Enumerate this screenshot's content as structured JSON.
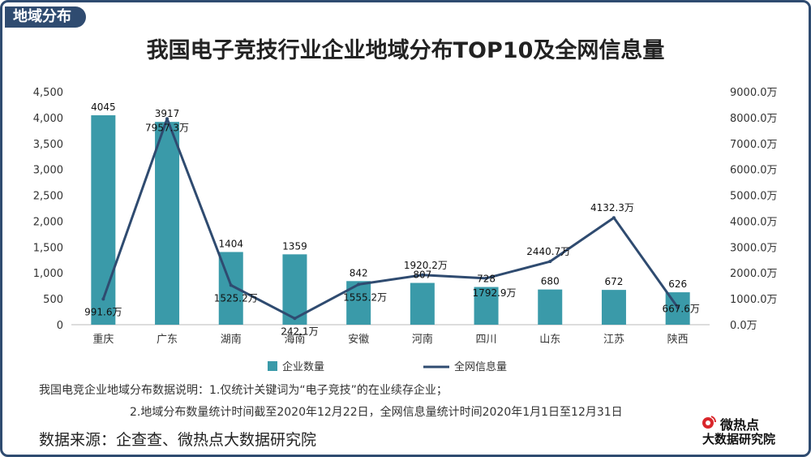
{
  "header": {
    "tag": "地域分布",
    "title": "我国电子竞技行业企业地域分布TOP10及全网信息量"
  },
  "notes": {
    "line1": "我国电竞企业地域分布数据说明：1.仅统计关键词为“电子竞技”的在业续存企业；",
    "line2": "2.地域分布数量统计时间截至2020年12月22日，全网信息量统计时间2020年1月1日至12月31日"
  },
  "source": "数据来源：企查查、微热点大数据研究院",
  "logo": {
    "top": "微热点",
    "bottom": "大数据研究院"
  },
  "colors": {
    "bar": "#3a9aa9",
    "line": "#2f4b70",
    "frame": "#2f4b70"
  },
  "chart_data": {
    "type": "bar",
    "categories": [
      "重庆",
      "广东",
      "湖南",
      "海南",
      "安徽",
      "河南",
      "四川",
      "山东",
      "江苏",
      "陕西"
    ],
    "series": [
      {
        "name": "企业数量",
        "type": "bar",
        "axis": "left",
        "values": [
          4045,
          3917,
          1404,
          1359,
          842,
          807,
          728,
          680,
          672,
          626
        ],
        "labels": [
          "4045",
          "3917",
          "1404",
          "1359",
          "842",
          "807",
          "728",
          "680",
          "672",
          "626"
        ]
      },
      {
        "name": "全网信息量",
        "type": "line",
        "axis": "right",
        "values": [
          991.6,
          7957.3,
          1525.2,
          242.1,
          1555.2,
          1920.2,
          1792.9,
          2440.7,
          4132.3,
          667.6
        ],
        "labels": [
          "991.6万",
          "7957.3万",
          "1525.2万",
          "242.1万",
          "1555.2万",
          "1920.2万",
          "1792.9万",
          "2440.7万",
          "4132.3万",
          "667.6万"
        ]
      }
    ],
    "y_left": {
      "ylim": [
        0,
        4500
      ],
      "ticks": [
        "0",
        "500",
        "1,000",
        "1,500",
        "2,000",
        "2,500",
        "3,000",
        "3,500",
        "4,000",
        "4,500"
      ]
    },
    "y_right": {
      "ylim": [
        0,
        9000
      ],
      "ticks": [
        "0.0万",
        "1000.0万",
        "2000.0万",
        "3000.0万",
        "4000.0万",
        "5000.0万",
        "6000.0万",
        "7000.0万",
        "8000.0万",
        "9000.0万"
      ]
    },
    "legend": {
      "position": "bottom",
      "items": [
        "企业数量",
        "全网信息量"
      ]
    },
    "grid": false
  }
}
